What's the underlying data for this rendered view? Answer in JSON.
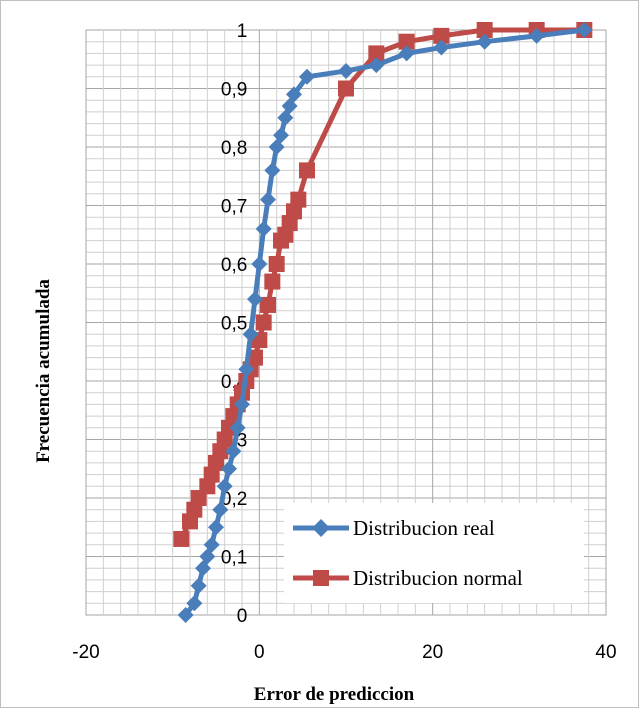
{
  "chart_data": {
    "type": "line",
    "xlabel": "Error de prediccion",
    "ylabel": "Frecuencia acumulada",
    "xlim": [
      -20,
      40
    ],
    "ylim": [
      0,
      1
    ],
    "x_ticks": [
      -20,
      0,
      20,
      40
    ],
    "x_tick_labels": [
      "-20",
      "0",
      "20",
      "40"
    ],
    "y_ticks": [
      0,
      0.1,
      0.2,
      0.3,
      0.4,
      0.5,
      0.6,
      0.7,
      0.8,
      0.9,
      1
    ],
    "y_tick_labels": [
      "0",
      "0,1",
      "0,2",
      "0,3",
      "0,4",
      "0,5",
      "0,6",
      "0,7",
      "0,8",
      "0,9",
      "1"
    ],
    "grid": true,
    "legend_position": "bottom-right",
    "series": [
      {
        "name": "Distribucion real",
        "color": "#4a7ebb",
        "marker": "diamond",
        "points": [
          [
            -8.5,
            0.0
          ],
          [
            -7.5,
            0.02
          ],
          [
            -7.0,
            0.05
          ],
          [
            -6.5,
            0.08
          ],
          [
            -6.0,
            0.1
          ],
          [
            -5.5,
            0.12
          ],
          [
            -5.0,
            0.15
          ],
          [
            -4.5,
            0.18
          ],
          [
            -4.0,
            0.22
          ],
          [
            -3.5,
            0.25
          ],
          [
            -3.0,
            0.28
          ],
          [
            -2.5,
            0.32
          ],
          [
            -2.0,
            0.36
          ],
          [
            -1.5,
            0.42
          ],
          [
            -1.0,
            0.48
          ],
          [
            -0.5,
            0.54
          ],
          [
            0.0,
            0.6
          ],
          [
            0.5,
            0.66
          ],
          [
            1.0,
            0.71
          ],
          [
            1.5,
            0.76
          ],
          [
            2.0,
            0.8
          ],
          [
            2.5,
            0.82
          ],
          [
            3.0,
            0.85
          ],
          [
            3.5,
            0.87
          ],
          [
            4.0,
            0.89
          ],
          [
            5.5,
            0.92
          ],
          [
            10.0,
            0.93
          ],
          [
            13.5,
            0.94
          ],
          [
            17.0,
            0.96
          ],
          [
            21.0,
            0.97
          ],
          [
            26.0,
            0.98
          ],
          [
            32.0,
            0.99
          ],
          [
            37.5,
            1.0
          ]
        ]
      },
      {
        "name": "Distribucion normal",
        "color": "#be4b48",
        "marker": "square",
        "points": [
          [
            -9.0,
            0.13
          ],
          [
            -8.0,
            0.16
          ],
          [
            -7.5,
            0.18
          ],
          [
            -7.0,
            0.2
          ],
          [
            -6.0,
            0.22
          ],
          [
            -5.5,
            0.24
          ],
          [
            -5.0,
            0.26
          ],
          [
            -4.5,
            0.28
          ],
          [
            -4.0,
            0.3
          ],
          [
            -3.5,
            0.32
          ],
          [
            -3.0,
            0.34
          ],
          [
            -2.5,
            0.36
          ],
          [
            -2.0,
            0.38
          ],
          [
            -1.5,
            0.4
          ],
          [
            -1.0,
            0.42
          ],
          [
            -0.5,
            0.44
          ],
          [
            0.0,
            0.47
          ],
          [
            0.5,
            0.5
          ],
          [
            1.0,
            0.53
          ],
          [
            1.5,
            0.57
          ],
          [
            2.0,
            0.6
          ],
          [
            2.5,
            0.64
          ],
          [
            3.0,
            0.65
          ],
          [
            3.5,
            0.67
          ],
          [
            4.0,
            0.69
          ],
          [
            4.5,
            0.71
          ],
          [
            5.5,
            0.76
          ],
          [
            10.0,
            0.9
          ],
          [
            13.5,
            0.96
          ],
          [
            17.0,
            0.98
          ],
          [
            21.0,
            0.99
          ],
          [
            26.0,
            1.0
          ],
          [
            32.0,
            1.0
          ],
          [
            37.5,
            1.0
          ]
        ]
      }
    ]
  }
}
